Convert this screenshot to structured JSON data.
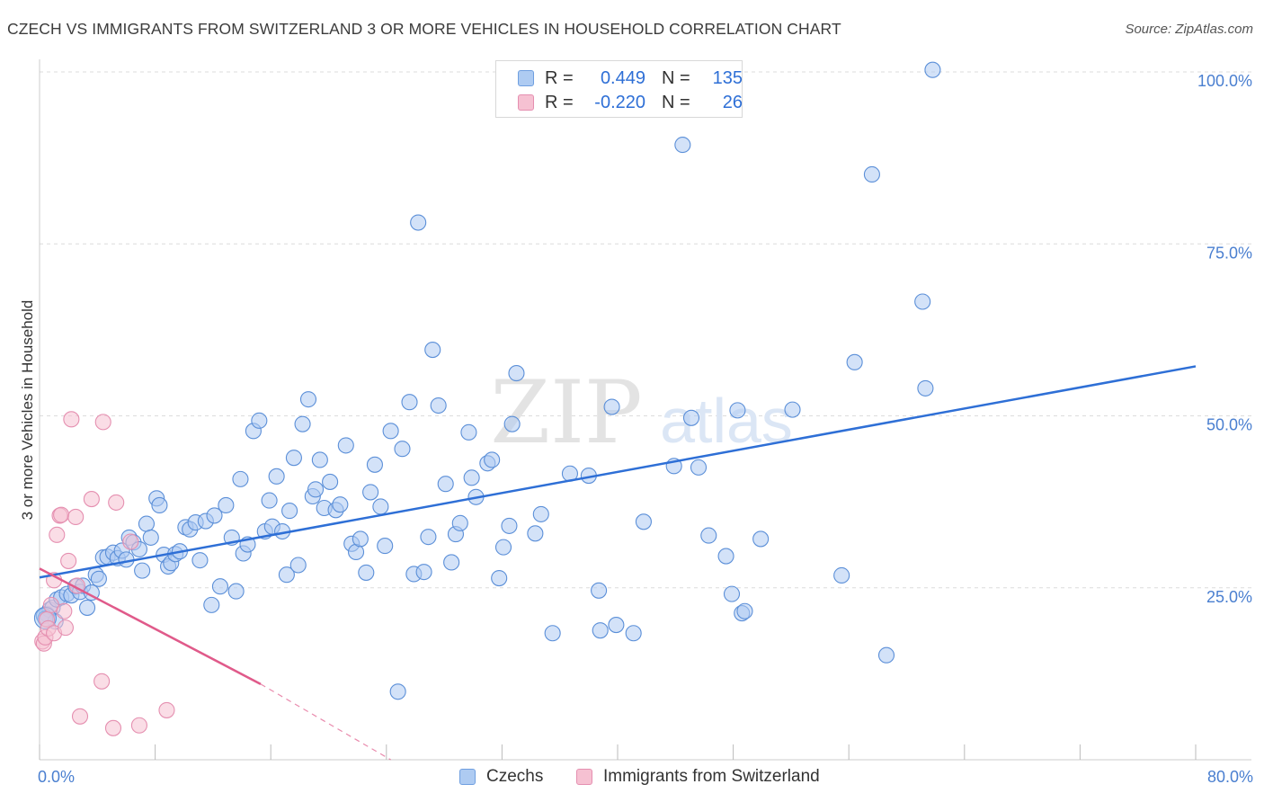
{
  "header": {
    "title": "CZECH VS IMMIGRANTS FROM SWITZERLAND 3 OR MORE VEHICLES IN HOUSEHOLD CORRELATION CHART",
    "source": "Source: ZipAtlas.com"
  },
  "watermark": {
    "zip": "ZIP",
    "atlas": "atlas"
  },
  "legend": {
    "rows": [
      {
        "r_label": "R =",
        "r_value": "0.449",
        "n_label": "N =",
        "n_value": "135",
        "color": "#aecbf2",
        "border": "#6f9fe0"
      },
      {
        "r_label": "R =",
        "r_value": "-0.220",
        "n_label": "N =",
        "n_value": "26",
        "color": "#f6c1d2",
        "border": "#e58fb0"
      }
    ]
  },
  "bottom_legend": {
    "czechs": "Czechs",
    "swiss": "Immigrants from Switzerland"
  },
  "chart_data": {
    "type": "scatter",
    "title": "CZECH VS IMMIGRANTS FROM SWITZERLAND 3 OR MORE VEHICLES IN HOUSEHOLD CORRELATION CHART",
    "xlabel": "",
    "ylabel": "3 or more Vehicles in Household",
    "xlim": [
      0,
      80
    ],
    "ylim": [
      0,
      100
    ],
    "x_tick_labels": [
      "0.0%",
      "80.0%"
    ],
    "y_ticks": [
      25,
      50,
      75,
      100
    ],
    "y_tick_labels": [
      "25.0%",
      "50.0%",
      "75.0%",
      "100.0%"
    ],
    "grid": true,
    "series": [
      {
        "name": "Czechs",
        "color": "#aecbf2",
        "stroke": "#5b8fd8",
        "trend": {
          "x": [
            0,
            80
          ],
          "y": [
            26.5,
            57.2
          ],
          "color": "#2e6fd6"
        },
        "points": [
          [
            0.5,
            21.2
          ],
          [
            0.7,
            21.8
          ],
          [
            0.9,
            22.1
          ],
          [
            1.2,
            23.3
          ],
          [
            1.5,
            23.6
          ],
          [
            1.9,
            24.1
          ],
          [
            2.2,
            23.9
          ],
          [
            2.5,
            25.2
          ],
          [
            2.8,
            24.4
          ],
          [
            3.0,
            25.3
          ],
          [
            3.3,
            22.1
          ],
          [
            3.6,
            24.3
          ],
          [
            3.9,
            26.9
          ],
          [
            4.1,
            26.3
          ],
          [
            4.4,
            29.4
          ],
          [
            4.7,
            29.5
          ],
          [
            5.1,
            30.1
          ],
          [
            5.4,
            29.3
          ],
          [
            5.7,
            30.4
          ],
          [
            6.0,
            29.1
          ],
          [
            6.2,
            32.3
          ],
          [
            6.5,
            31.6
          ],
          [
            6.9,
            30.6
          ],
          [
            7.1,
            27.5
          ],
          [
            7.4,
            34.3
          ],
          [
            7.7,
            32.3
          ],
          [
            8.1,
            38.0
          ],
          [
            8.3,
            37.0
          ],
          [
            8.6,
            29.8
          ],
          [
            8.9,
            28.1
          ],
          [
            9.1,
            28.6
          ],
          [
            9.4,
            29.9
          ],
          [
            9.7,
            30.3
          ],
          [
            10.1,
            33.8
          ],
          [
            10.4,
            33.5
          ],
          [
            10.8,
            34.5
          ],
          [
            11.1,
            29.0
          ],
          [
            11.5,
            34.7
          ],
          [
            11.9,
            22.5
          ],
          [
            12.1,
            35.5
          ],
          [
            12.5,
            25.2
          ],
          [
            12.9,
            37.0
          ],
          [
            13.3,
            32.3
          ],
          [
            13.6,
            24.5
          ],
          [
            13.9,
            40.8
          ],
          [
            14.1,
            30.0
          ],
          [
            14.4,
            31.3
          ],
          [
            14.8,
            47.8
          ],
          [
            15.2,
            49.3
          ],
          [
            15.6,
            33.2
          ],
          [
            15.9,
            37.7
          ],
          [
            16.1,
            33.9
          ],
          [
            16.4,
            41.2
          ],
          [
            16.8,
            33.2
          ],
          [
            17.1,
            26.9
          ],
          [
            17.3,
            36.2
          ],
          [
            17.6,
            43.9
          ],
          [
            17.9,
            28.3
          ],
          [
            18.2,
            48.8
          ],
          [
            18.6,
            52.4
          ],
          [
            18.9,
            38.3
          ],
          [
            19.1,
            39.3
          ],
          [
            19.4,
            43.6
          ],
          [
            19.7,
            36.6
          ],
          [
            20.1,
            40.4
          ],
          [
            20.5,
            36.3
          ],
          [
            20.8,
            37.1
          ],
          [
            21.2,
            45.7
          ],
          [
            21.6,
            31.4
          ],
          [
            21.9,
            30.2
          ],
          [
            22.2,
            32.1
          ],
          [
            22.6,
            27.2
          ],
          [
            22.9,
            38.9
          ],
          [
            23.2,
            42.9
          ],
          [
            23.6,
            36.8
          ],
          [
            23.9,
            31.1
          ],
          [
            24.3,
            47.8
          ],
          [
            24.8,
            9.9
          ],
          [
            25.1,
            45.2
          ],
          [
            25.6,
            52.0
          ],
          [
            25.9,
            27.0
          ],
          [
            26.2,
            78.1
          ],
          [
            26.6,
            27.3
          ],
          [
            26.9,
            32.4
          ],
          [
            27.2,
            59.6
          ],
          [
            27.6,
            51.5
          ],
          [
            28.1,
            40.1
          ],
          [
            28.5,
            28.7
          ],
          [
            28.8,
            32.8
          ],
          [
            29.1,
            34.4
          ],
          [
            29.7,
            47.6
          ],
          [
            29.9,
            41.0
          ],
          [
            30.2,
            38.2
          ],
          [
            31.0,
            43.1
          ],
          [
            31.3,
            43.6
          ],
          [
            31.8,
            26.4
          ],
          [
            32.1,
            30.9
          ],
          [
            32.5,
            34.0
          ],
          [
            32.7,
            48.8
          ],
          [
            33.0,
            56.2
          ],
          [
            34.3,
            32.9
          ],
          [
            34.7,
            35.7
          ],
          [
            35.5,
            18.4
          ],
          [
            36.7,
            41.6
          ],
          [
            38.0,
            41.3
          ],
          [
            38.7,
            24.6
          ],
          [
            38.8,
            18.8
          ],
          [
            39.6,
            51.3
          ],
          [
            39.9,
            19.6
          ],
          [
            41.1,
            18.4
          ],
          [
            41.8,
            34.6
          ],
          [
            43.9,
            42.7
          ],
          [
            44.5,
            89.4
          ],
          [
            45.1,
            49.7
          ],
          [
            45.6,
            42.5
          ],
          [
            46.3,
            32.6
          ],
          [
            47.5,
            29.6
          ],
          [
            47.9,
            24.1
          ],
          [
            48.3,
            50.8
          ],
          [
            48.6,
            21.3
          ],
          [
            48.8,
            21.6
          ],
          [
            49.9,
            32.1
          ],
          [
            52.1,
            50.9
          ],
          [
            55.5,
            26.8
          ],
          [
            56.4,
            57.8
          ],
          [
            57.6,
            85.1
          ],
          [
            58.6,
            15.2
          ],
          [
            61.1,
            66.6
          ],
          [
            61.3,
            54.0
          ],
          [
            61.8,
            100.3
          ],
          [
            0.3,
            20.9
          ],
          [
            1.1,
            20.1
          ],
          [
            0.4,
            20.5
          ]
        ]
      },
      {
        "name": "Immigrants from Switzerland",
        "color": "#f6c1d2",
        "stroke": "#e58fb0",
        "trend": {
          "x": [
            0,
            15.3
          ],
          "y": [
            27.8,
            11.0
          ],
          "dash_x": [
            15.3,
            24.3
          ],
          "dash_y": [
            11.0,
            0
          ],
          "color": "#e05a8a"
        },
        "points": [
          [
            0.2,
            17.2
          ],
          [
            0.3,
            16.9
          ],
          [
            0.4,
            17.8
          ],
          [
            0.5,
            20.4
          ],
          [
            0.6,
            19.1
          ],
          [
            0.8,
            22.5
          ],
          [
            1.0,
            18.4
          ],
          [
            1.2,
            32.7
          ],
          [
            1.4,
            35.5
          ],
          [
            1.5,
            35.6
          ],
          [
            1.7,
            21.6
          ],
          [
            1.8,
            19.2
          ],
          [
            2.0,
            28.9
          ],
          [
            2.2,
            49.5
          ],
          [
            2.5,
            35.3
          ],
          [
            2.6,
            25.3
          ],
          [
            2.8,
            6.3
          ],
          [
            3.6,
            37.9
          ],
          [
            4.3,
            11.4
          ],
          [
            4.4,
            49.1
          ],
          [
            5.1,
            4.6
          ],
          [
            5.3,
            37.4
          ],
          [
            6.3,
            31.7
          ],
          [
            6.9,
            5.0
          ],
          [
            8.8,
            7.2
          ],
          [
            1.0,
            26.1
          ]
        ]
      }
    ]
  }
}
